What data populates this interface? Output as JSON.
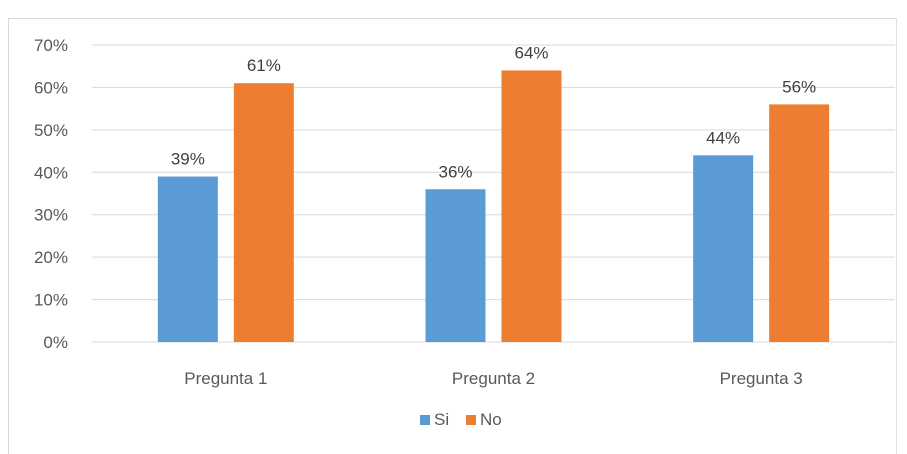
{
  "chart_data": {
    "type": "bar",
    "categories": [
      "Pregunta 1",
      "Pregunta 2",
      "Pregunta 3"
    ],
    "series": [
      {
        "name": "Si",
        "values": [
          39,
          36,
          44
        ],
        "labels": [
          "39%",
          "36%",
          "44%"
        ],
        "color": "#5b9bd5"
      },
      {
        "name": "No",
        "values": [
          61,
          64,
          56
        ],
        "labels": [
          "61%",
          "64%",
          "56%"
        ],
        "color": "#ed7d31"
      }
    ],
    "yticks": [
      "0%",
      "10%",
      "20%",
      "30%",
      "40%",
      "50%",
      "60%",
      "70%"
    ],
    "ylim": [
      0,
      70
    ],
    "grid": true,
    "legend_position": "bottom"
  }
}
